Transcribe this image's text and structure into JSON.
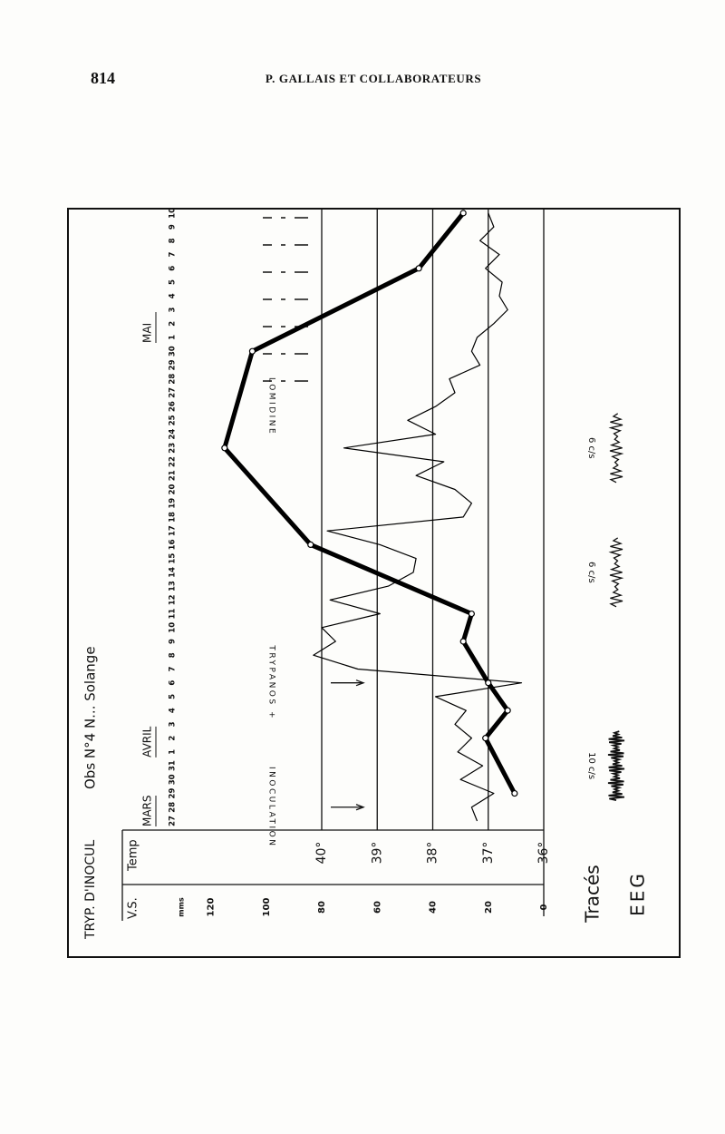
{
  "header": {
    "page": "814",
    "running_title": "P. GALLAIS ET COLLABORATEURS"
  },
  "chart_data": {
    "type": "line",
    "title": "TRYP. D'INOCUL",
    "subtitle": "Obs N°4 N... Solange",
    "categories": [
      "27",
      "28",
      "29",
      "30",
      "31",
      "1",
      "2",
      "3",
      "4",
      "5",
      "6",
      "7",
      "8",
      "9",
      "10",
      "11",
      "12",
      "13",
      "14",
      "15",
      "16",
      "17",
      "18",
      "19",
      "20",
      "21",
      "22",
      "23",
      "24",
      "25",
      "26",
      "27",
      "28",
      "29",
      "30",
      "1",
      "2",
      "3",
      "4",
      "5",
      "6",
      "7",
      "8",
      "9",
      "10"
    ],
    "month_labels": [
      "MARS",
      "AVRIL",
      "MAI"
    ],
    "series": [
      {
        "name": "V.S.",
        "axis": "y2",
        "color": "#000000",
        "unit": "mms",
        "x": [
          2,
          6,
          8,
          10,
          13,
          15,
          20,
          27,
          34,
          40,
          44
        ],
        "values": [
          10.5,
          21,
          13,
          20,
          29,
          26,
          84,
          115,
          105,
          45,
          29
        ]
      },
      {
        "name": "Temp",
        "color": "#000000",
        "values": [
          37.2,
          37.3,
          36.9,
          37.5,
          37.1,
          37.55,
          37.3,
          37.6,
          37.4,
          37.95,
          36.4,
          39.35,
          40.15,
          39.75,
          40.0,
          38.95,
          39.85,
          38.8,
          38.35,
          38.3,
          38.95,
          39.9,
          37.45,
          37.3,
          37.6,
          38.3,
          37.8,
          39.6,
          37.95,
          38.45,
          37.95,
          37.6,
          37.7,
          37.15,
          37.3,
          37.2,
          36.9,
          36.65,
          36.8,
          36.75,
          37.05,
          36.8,
          37.15,
          36.9,
          37.0
        ]
      }
    ],
    "ylim": [
      36,
      42
    ],
    "yticks": [
      {
        "value": 40,
        "label": "40°"
      },
      {
        "value": 39,
        "label": "39°"
      },
      {
        "value": 38,
        "label": "38°"
      },
      {
        "value": 37,
        "label": "37°"
      },
      {
        "value": 36,
        "label": "36°"
      }
    ],
    "y2lim": [
      0,
      120
    ],
    "y2ticks": [
      120,
      100,
      80,
      60,
      40,
      20,
      0
    ],
    "grid": true,
    "annotations": [
      {
        "text": "INOCULATION",
        "category_index": 1
      },
      {
        "text": "TRYPANOS +",
        "category_index": 10
      },
      {
        "text": "LOMIDINE",
        "category_index": 30
      }
    ],
    "eeg_title": [
      "Tracés",
      "EEG"
    ],
    "eeg_traces": [
      {
        "label": "10 c/s",
        "category_index": 4
      },
      {
        "label": "6 c/s",
        "category_index": 18
      },
      {
        "label": "6 c/s",
        "category_index": 27
      }
    ]
  }
}
